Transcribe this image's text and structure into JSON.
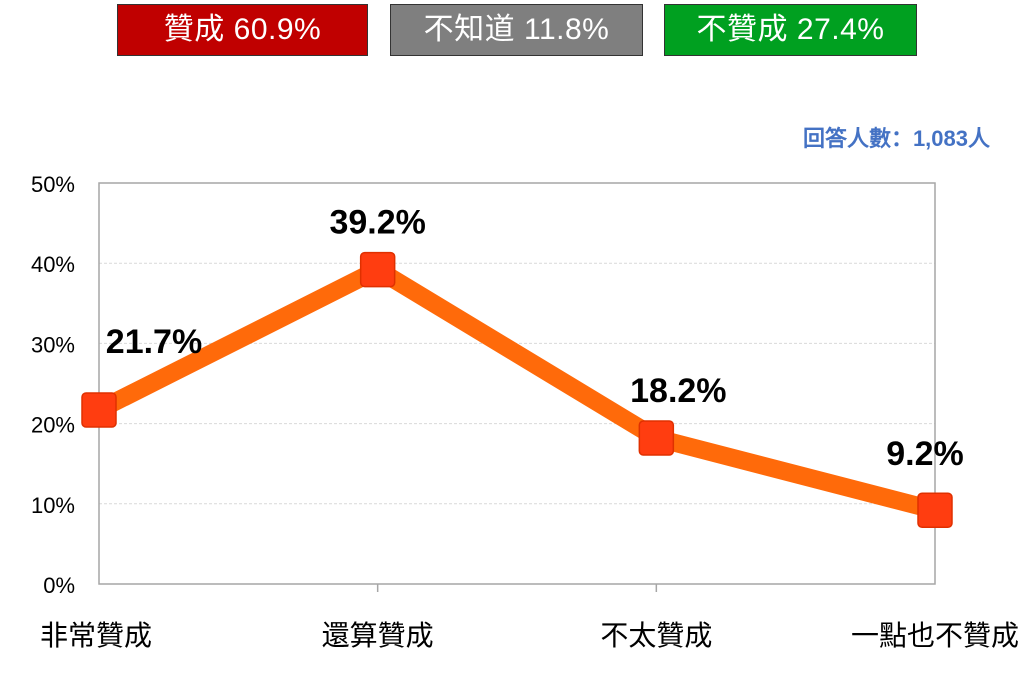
{
  "summary": [
    {
      "label": "贊成 60.9%",
      "color": "#c00000"
    },
    {
      "label": "不知道 11.8%",
      "color": "#7f7f7f"
    },
    {
      "label": "不贊成 27.4%",
      "color": "#00a020"
    }
  ],
  "respondents": "回答人數：1,083人",
  "colors": {
    "line": "#ff6a0a",
    "marker": "#ff3d10",
    "gridline": "#d9d9d9",
    "axis": "#a6a6a6"
  },
  "chart_data": {
    "type": "line",
    "categories": [
      "非常贊成",
      "還算贊成",
      "不太贊成",
      "一點也不贊成"
    ],
    "series": [
      {
        "values": [
          21.7,
          39.2,
          18.2,
          9.2
        ]
      }
    ],
    "data_labels": [
      "21.7%",
      "39.2%",
      "18.2%",
      "9.2%"
    ],
    "yticks": [
      "0%",
      "10%",
      "20%",
      "30%",
      "40%",
      "50%"
    ],
    "ylim": [
      0,
      50
    ],
    "grid": true,
    "title": "",
    "xlabel": "",
    "ylabel": ""
  }
}
